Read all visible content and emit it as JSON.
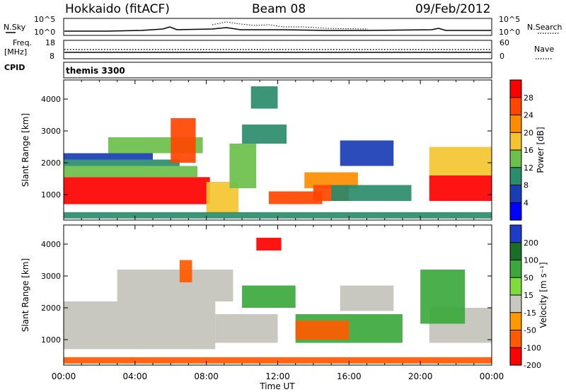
{
  "header": {
    "station": "Hokkaido (fitACF)",
    "beam": "Beam 08",
    "date": "09/Feb/2012"
  },
  "noise_panel": {
    "left_label": "N.Sky",
    "left_ticks": [
      "10^5",
      "10^0"
    ],
    "right_ticks": [
      "10^5",
      "10^0"
    ],
    "right_label": "N.Search"
  },
  "freq_panel": {
    "left_label": "Freq.",
    "left_unit": "[MHz]",
    "left_ticks": [
      "18",
      "8"
    ],
    "right_ticks": [
      "60",
      "0"
    ],
    "right_label": "Nave"
  },
  "cpid": {
    "label": "CPID",
    "value": "themis 3300"
  },
  "colors": {
    "power": [
      "#0000ff",
      "#1a3db5",
      "#2a8c6a",
      "#6bbf4a",
      "#f4c430",
      "#ff8c00",
      "#ff4500",
      "#ff0000"
    ],
    "velocity": [
      "#1e3cc8",
      "#1b6e28",
      "#3ca83c",
      "#7fdc3c",
      "#c8c8c0",
      "#ff9900",
      "#ff5a00",
      "#ff0000"
    ],
    "ground_scatter": "#c3c3bb"
  },
  "chart_data": [
    {
      "type": "heatmap",
      "title": "Power",
      "xlabel": "Time UT",
      "ylabel": "Slant Range [km]",
      "xlim": [
        "00:00",
        "24:00"
      ],
      "ylim": [
        200,
        4600
      ],
      "x_ticks": [
        "00:00",
        "04:00",
        "08:00",
        "12:00",
        "16:00",
        "20:00",
        "00:00"
      ],
      "y_ticks": [
        1000,
        2000,
        3000,
        4000
      ],
      "colorbar_label": "Power [dB]",
      "colorbar_ticks": [
        4,
        8,
        12,
        16,
        20,
        24,
        28
      ],
      "regions": [
        {
          "t": [
            0.0,
            8.2
          ],
          "r": [
            700,
            1550
          ],
          "v": 30
        },
        {
          "t": [
            0.0,
            7.5
          ],
          "r": [
            1550,
            1900
          ],
          "v": 14
        },
        {
          "t": [
            0.0,
            6.5
          ],
          "r": [
            1900,
            2100
          ],
          "v": 10
        },
        {
          "t": [
            0.0,
            5.0
          ],
          "r": [
            2100,
            2300
          ],
          "v": 5
        },
        {
          "t": [
            2.5,
            7.8
          ],
          "r": [
            2300,
            2800
          ],
          "v": 12
        },
        {
          "t": [
            6.0,
            7.4
          ],
          "r": [
            2000,
            3400
          ],
          "v": 25
        },
        {
          "t": [
            8.0,
            9.8
          ],
          "r": [
            400,
            1400
          ],
          "v": 16
        },
        {
          "t": [
            9.3,
            10.8
          ],
          "r": [
            1200,
            2600
          ],
          "v": 12
        },
        {
          "t": [
            10.0,
            12.5
          ],
          "r": [
            2600,
            3200
          ],
          "v": 8
        },
        {
          "t": [
            10.5,
            12.0
          ],
          "r": [
            3700,
            4400
          ],
          "v": 8
        },
        {
          "t": [
            11.5,
            14.5
          ],
          "r": [
            700,
            1100
          ],
          "v": 24
        },
        {
          "t": [
            13.5,
            16.5
          ],
          "r": [
            1200,
            1700
          ],
          "v": 22
        },
        {
          "t": [
            14.0,
            16.0
          ],
          "r": [
            800,
            1300
          ],
          "v": 26
        },
        {
          "t": [
            15.0,
            19.5
          ],
          "r": [
            800,
            1300
          ],
          "v": 10
        },
        {
          "t": [
            15.5,
            18.5
          ],
          "r": [
            1900,
            2700
          ],
          "v": 6
        },
        {
          "t": [
            20.5,
            24.0
          ],
          "r": [
            800,
            1600
          ],
          "v": 30
        },
        {
          "t": [
            20.5,
            24.0
          ],
          "r": [
            1600,
            2500
          ],
          "v": 18
        },
        {
          "t": [
            0.0,
            24.0
          ],
          "r": [
            250,
            450
          ],
          "v": 10
        }
      ]
    },
    {
      "type": "heatmap",
      "title": "Velocity",
      "xlabel": "Time UT",
      "ylabel": "Slant Range [km]",
      "xlim": [
        "00:00",
        "24:00"
      ],
      "ylim": [
        200,
        4600
      ],
      "x_ticks": [
        "00:00",
        "04:00",
        "08:00",
        "12:00",
        "16:00",
        "20:00",
        "00:00"
      ],
      "y_ticks": [
        1000,
        2000,
        3000,
        4000
      ],
      "colorbar_label": "Velocity [m s⁻¹]",
      "colorbar_ticks": [
        200,
        100,
        50,
        15,
        -15,
        -50,
        -100,
        -200
      ],
      "regions": [
        {
          "t": [
            0.0,
            8.5
          ],
          "r": [
            700,
            2200
          ],
          "v": 0,
          "gs": true
        },
        {
          "t": [
            3.0,
            9.5
          ],
          "r": [
            2200,
            3200
          ],
          "v": 0,
          "gs": true
        },
        {
          "t": [
            8.5,
            12.0
          ],
          "r": [
            900,
            1800
          ],
          "v": 0,
          "gs": true
        },
        {
          "t": [
            10.8,
            12.2
          ],
          "r": [
            3800,
            4200
          ],
          "v": -200
        },
        {
          "t": [
            10.0,
            13.0
          ],
          "r": [
            2000,
            2700
          ],
          "v": 60
        },
        {
          "t": [
            13.0,
            19.0
          ],
          "r": [
            900,
            1800
          ],
          "v": 60
        },
        {
          "t": [
            13.0,
            16.0
          ],
          "r": [
            1000,
            1600
          ],
          "v": -80
        },
        {
          "t": [
            15.5,
            18.5
          ],
          "r": [
            1900,
            2700
          ],
          "v": 0,
          "gs": true
        },
        {
          "t": [
            6.5,
            7.2
          ],
          "r": [
            2800,
            3500
          ],
          "v": -80
        },
        {
          "t": [
            20.5,
            24.0
          ],
          "r": [
            900,
            2000
          ],
          "v": 0,
          "gs": true
        },
        {
          "t": [
            20.0,
            22.5
          ],
          "r": [
            1500,
            3200
          ],
          "v": 60
        },
        {
          "t": [
            0.0,
            24.0
          ],
          "r": [
            250,
            450
          ],
          "v": -60
        }
      ]
    }
  ]
}
